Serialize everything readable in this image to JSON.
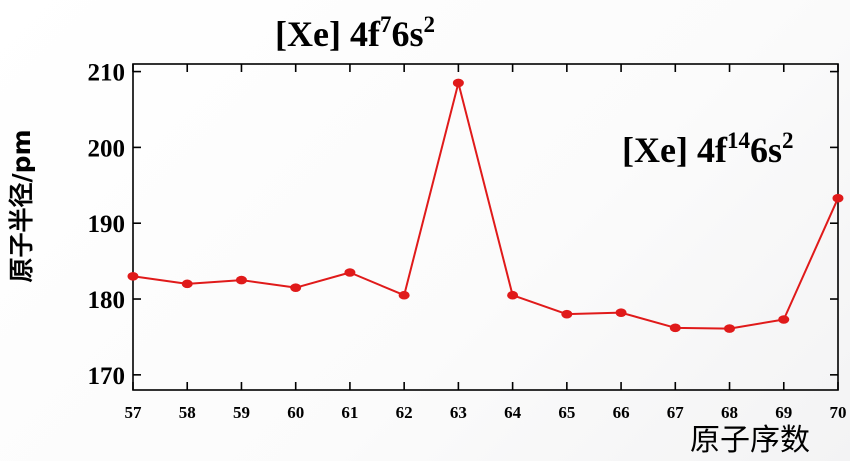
{
  "chart_data": {
    "type": "line",
    "x": [
      57,
      58,
      59,
      60,
      61,
      62,
      63,
      64,
      65,
      66,
      67,
      68,
      69,
      70
    ],
    "series": [
      {
        "values": [
          183.0,
          182.0,
          182.5,
          181.5,
          183.5,
          180.5,
          208.5,
          180.5,
          178.0,
          178.2,
          176.2,
          176.1,
          177.3,
          193.3
        ]
      }
    ],
    "xlabel": "原子序数",
    "ylabel": "原子半径/pm",
    "xlim": [
      57,
      70
    ],
    "ylim": [
      168,
      211
    ],
    "y_ticks": [
      170,
      180,
      190,
      200,
      210
    ],
    "x_ticks": [
      57,
      58,
      59,
      60,
      61,
      62,
      63,
      64,
      65,
      66,
      67,
      68,
      69,
      70
    ],
    "grid": false,
    "annotations": [
      {
        "base": "[Xe] 4f",
        "sup1": "7",
        "mid": "6s",
        "sup2": "2"
      },
      {
        "base": "[Xe] 4f",
        "sup1": "14",
        "mid": "6s",
        "sup2": "2"
      }
    ],
    "colors": {
      "line": "#e01a1a",
      "marker": "#e01a1a",
      "axis": "#000000"
    }
  }
}
